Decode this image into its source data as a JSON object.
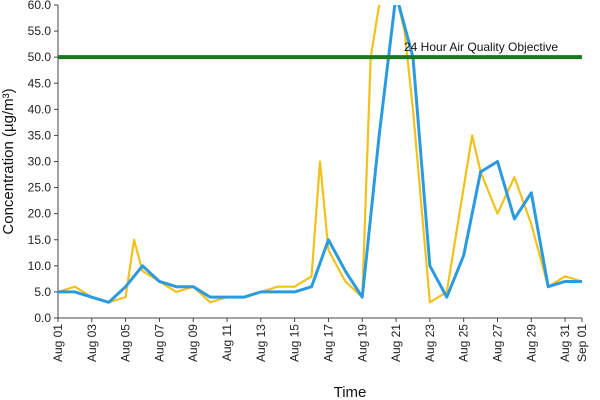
{
  "chart_data": {
    "type": "line",
    "title": "",
    "xlabel": "Time",
    "ylabel": "Concentration (µg/m³)",
    "ylim": [
      0,
      60
    ],
    "y_ticks": [
      "0.0",
      "5.0",
      "10.0",
      "15.0",
      "20.0",
      "25.0",
      "30.0",
      "35.0",
      "40.0",
      "45.0",
      "50.0",
      "55.0",
      "60.0"
    ],
    "x_range": [
      "Aug 01",
      "Sep 01"
    ],
    "x_ticks": [
      "Aug 01",
      "Aug 03",
      "Aug 05",
      "Aug 07",
      "Aug 09",
      "Aug 11",
      "Aug 13",
      "Aug 15",
      "Aug 17",
      "Aug 19",
      "Aug 21",
      "Aug 23",
      "Aug 25",
      "Aug 27",
      "Aug 29",
      "Aug 31",
      "Sep 01"
    ],
    "grid": false,
    "legend": "none",
    "colors": {
      "hourly": "#f2c21b",
      "rolling": "#2b9be0",
      "objective": "#1a7a1a"
    },
    "objective": {
      "label": "24 Hour Air Quality Objective",
      "value": 50
    },
    "series": [
      {
        "key": "hourly",
        "x": [
          "Aug 01",
          "Aug 02",
          "Aug 03",
          "Aug 04",
          "Aug 05",
          "Aug 05 12:00",
          "Aug 06",
          "Aug 07",
          "Aug 08",
          "Aug 09",
          "Aug 10",
          "Aug 11",
          "Aug 12",
          "Aug 13",
          "Aug 14",
          "Aug 15",
          "Aug 16",
          "Aug 16 12:00",
          "Aug 17",
          "Aug 18",
          "Aug 19",
          "Aug 19 12:00",
          "Aug 20",
          "Aug 21",
          "Aug 21 12:00",
          "Aug 22",
          "Aug 23",
          "Aug 24",
          "Aug 25",
          "Aug 25 12:00",
          "Aug 26",
          "Aug 27",
          "Aug 28",
          "Aug 29",
          "Aug 30",
          "Aug 31",
          "Sep 01"
        ],
        "values": [
          5,
          6,
          4,
          3,
          4,
          15,
          9,
          7,
          5,
          6,
          3,
          4,
          4,
          5,
          6,
          6,
          8,
          30,
          13,
          7,
          4,
          50,
          60,
          62,
          55,
          40,
          3,
          5,
          25,
          35,
          28,
          20,
          27,
          18,
          6,
          8,
          7
        ]
      },
      {
        "key": "rolling",
        "x": [
          "Aug 01",
          "Aug 02",
          "Aug 03",
          "Aug 04",
          "Aug 05",
          "Aug 06",
          "Aug 07",
          "Aug 08",
          "Aug 09",
          "Aug 10",
          "Aug 11",
          "Aug 12",
          "Aug 13",
          "Aug 14",
          "Aug 15",
          "Aug 16",
          "Aug 17",
          "Aug 18",
          "Aug 19",
          "Aug 20",
          "Aug 21",
          "Aug 22",
          "Aug 23",
          "Aug 24",
          "Aug 25",
          "Aug 26",
          "Aug 27",
          "Aug 28",
          "Aug 29",
          "Aug 30",
          "Aug 31",
          "Sep 01"
        ],
        "values": [
          5,
          5,
          4,
          3,
          6,
          10,
          7,
          6,
          6,
          4,
          4,
          4,
          5,
          5,
          5,
          6,
          15,
          9,
          4,
          35,
          62,
          50,
          10,
          4,
          12,
          28,
          30,
          19,
          24,
          6,
          7,
          7
        ]
      }
    ]
  }
}
